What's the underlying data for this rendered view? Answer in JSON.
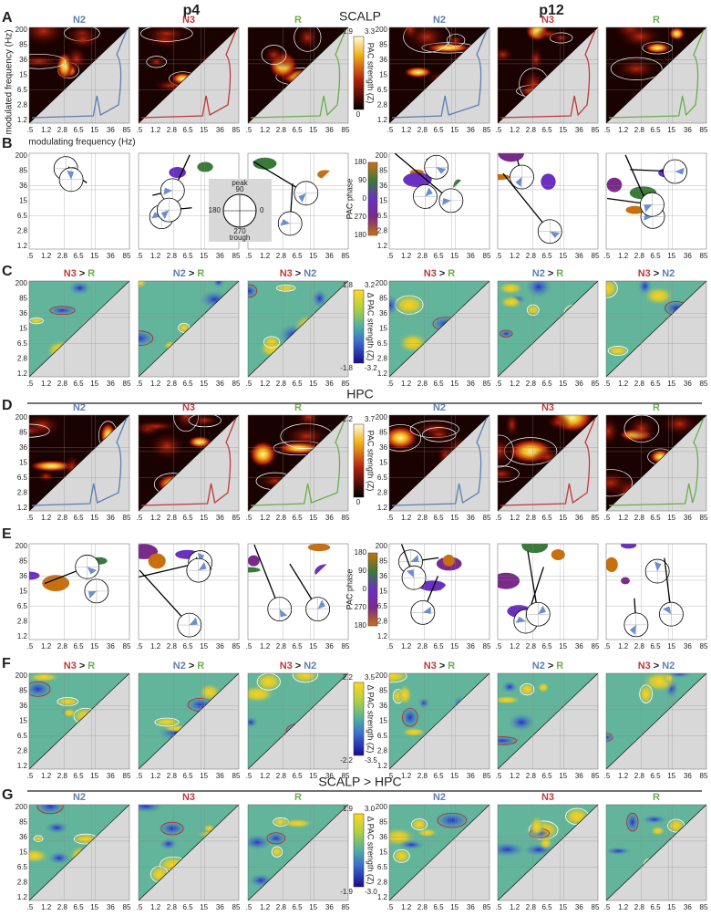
{
  "figure": {
    "panel_letters": [
      "A",
      "B",
      "C",
      "D",
      "E",
      "F",
      "G"
    ],
    "subjects": [
      "p4",
      "p12"
    ],
    "sections": [
      "SCALP",
      "HPC",
      "SCALP > HPC"
    ],
    "states": [
      "N2",
      "N3",
      "R"
    ],
    "contrasts": [
      [
        "N3",
        ">",
        "R"
      ],
      [
        "N2",
        ">",
        "R"
      ],
      [
        "N3",
        ">",
        "N2"
      ]
    ],
    "y_ticks": [
      "200",
      "85",
      "36",
      "15",
      "6.5",
      "2.8",
      "1.2"
    ],
    "x_ticks": [
      ".5",
      "1.2",
      "2.8",
      "6.5",
      "15",
      "36",
      "85"
    ],
    "y_axis_label": "modulated frequency (Hz)",
    "x_axis_label": "modulating frequency (Hz)",
    "colorbars": {
      "A": {
        "top": [
          "1.9",
          "3.3"
        ],
        "bottom": [
          "0"
        ],
        "label": "PAC strength (Z)"
      },
      "B": {
        "ticks": [
          "180",
          "90",
          "0",
          "270",
          "180"
        ],
        "label": "PAC phase"
      },
      "C": {
        "top": [
          "1.8",
          "3.2"
        ],
        "bottom": [
          "-1.8",
          "-3.2"
        ],
        "label": "Δ PAC strength (Z)"
      },
      "D": {
        "top": [
          "2.2",
          "3.7"
        ],
        "bottom": [
          "0"
        ],
        "label": "PAC strength (Z)"
      },
      "E": {
        "ticks": [
          "180",
          "90",
          "0",
          "270",
          "180"
        ],
        "label": "PAC phase"
      },
      "F": {
        "top": [
          "2.2",
          "3.5"
        ],
        "bottom": [
          "-2.2",
          "-3.5"
        ],
        "label": "Δ PAC strength (Z)"
      },
      "G": {
        "top": [
          "1.9",
          "3.0"
        ],
        "bottom": [
          "-1.9",
          "-3.0"
        ],
        "label": "Δ PAC strength (Z)"
      }
    },
    "phase_inset": {
      "top": "peak",
      "top_value": "90",
      "left": "180",
      "right": "0",
      "bottom_value": "270",
      "bottom": "trough"
    }
  }
}
